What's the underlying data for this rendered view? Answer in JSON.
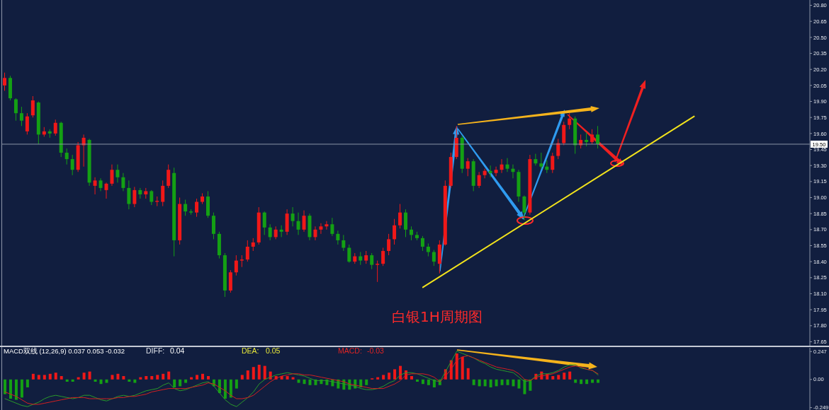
{
  "chart_data": [
    {
      "type": "candlestick",
      "title": "白银1H周期图",
      "categories": [
        null,
        null,
        null,
        null,
        null,
        null,
        null,
        null,
        null,
        null,
        null,
        null,
        null,
        null,
        null,
        null,
        null,
        null,
        null,
        null,
        null,
        null,
        null,
        null,
        null,
        null,
        null,
        null,
        null,
        null,
        null,
        null,
        null,
        null,
        null,
        null,
        null,
        null,
        null,
        null,
        null,
        null,
        null,
        null,
        null,
        null,
        null,
        null,
        null,
        null,
        null,
        null,
        null,
        null,
        null,
        null,
        null,
        null,
        null,
        null,
        null,
        null,
        null,
        null,
        null,
        null,
        null,
        null,
        null,
        null,
        null,
        null,
        null,
        null,
        null,
        null,
        null,
        null,
        null,
        null,
        null,
        null,
        null,
        null,
        null,
        null,
        null,
        null,
        null,
        null,
        null,
        null,
        null,
        null,
        null,
        null,
        null,
        null,
        null,
        null,
        null,
        null,
        null,
        null,
        null,
        null,
        null,
        null,
        null,
        null,
        null,
        null,
        null,
        null,
        null,
        null,
        null,
        null,
        null,
        null,
        null,
        null,
        null,
        null,
        null,
        null,
        null,
        null,
        null,
        null,
        null,
        null,
        null,
        null,
        null,
        null,
        null,
        null,
        null,
        null,
        null,
        null,
        null
      ],
      "ohlc": [
        [
          20.05,
          20.17,
          20.0,
          20.12
        ],
        [
          20.12,
          20.14,
          19.91,
          19.93
        ],
        [
          19.92,
          19.93,
          19.72,
          19.79
        ],
        [
          19.79,
          19.85,
          19.67,
          19.72
        ],
        [
          19.62,
          19.79,
          19.59,
          19.76
        ],
        [
          19.77,
          19.95,
          19.75,
          19.91
        ],
        [
          19.89,
          19.9,
          19.5,
          19.59
        ],
        [
          19.59,
          19.66,
          19.57,
          19.62
        ],
        [
          19.62,
          19.64,
          19.56,
          19.6
        ],
        [
          19.6,
          19.73,
          19.58,
          19.7
        ],
        [
          19.7,
          19.71,
          19.38,
          19.42
        ],
        [
          19.42,
          19.46,
          19.31,
          19.36
        ],
        [
          19.36,
          19.4,
          19.21,
          19.26
        ],
        [
          19.26,
          19.52,
          19.24,
          19.49
        ],
        [
          19.49,
          19.59,
          19.29,
          19.56
        ],
        [
          19.54,
          19.55,
          19.11,
          19.14
        ],
        [
          19.11,
          19.19,
          19.03,
          19.16
        ],
        [
          19.16,
          19.18,
          19.06,
          19.09
        ],
        [
          19.07,
          19.14,
          18.99,
          19.13
        ],
        [
          19.13,
          19.31,
          19.11,
          19.26
        ],
        [
          19.26,
          19.31,
          19.14,
          19.19
        ],
        [
          19.19,
          19.23,
          19.06,
          19.09
        ],
        [
          19.09,
          19.16,
          18.89,
          18.94
        ],
        [
          18.94,
          19.1,
          18.91,
          19.07
        ],
        [
          19.07,
          19.09,
          18.99,
          19.03
        ],
        [
          19.03,
          19.09,
          18.99,
          19.06
        ],
        [
          19.06,
          19.07,
          18.93,
          18.96
        ],
        [
          18.96,
          19.01,
          18.92,
          18.97
        ],
        [
          18.96,
          19.16,
          18.92,
          19.11
        ],
        [
          19.11,
          19.31,
          19.09,
          19.26
        ],
        [
          19.23,
          19.28,
          18.45,
          18.6
        ],
        [
          18.6,
          19.0,
          18.56,
          18.94
        ],
        [
          18.94,
          18.98,
          18.83,
          18.87
        ],
        [
          18.87,
          18.89,
          18.84,
          18.86
        ],
        [
          18.86,
          18.99,
          18.82,
          18.96
        ],
        [
          18.96,
          19.04,
          18.94,
          19.01
        ],
        [
          19.01,
          19.06,
          18.81,
          18.83
        ],
        [
          18.83,
          18.86,
          18.61,
          18.66
        ],
        [
          18.66,
          18.68,
          18.43,
          18.46
        ],
        [
          18.46,
          18.48,
          18.07,
          18.13
        ],
        [
          18.13,
          18.32,
          18.11,
          18.3
        ],
        [
          18.3,
          18.46,
          18.27,
          18.41
        ],
        [
          18.41,
          18.46,
          18.35,
          18.42
        ],
        [
          18.42,
          18.6,
          18.4,
          18.54
        ],
        [
          18.54,
          18.62,
          18.5,
          18.58
        ],
        [
          18.58,
          18.91,
          18.56,
          18.86
        ],
        [
          18.86,
          18.87,
          18.65,
          18.72
        ],
        [
          18.72,
          18.75,
          18.6,
          18.63
        ],
        [
          18.63,
          18.73,
          18.61,
          18.7
        ],
        [
          18.7,
          18.74,
          18.63,
          18.68
        ],
        [
          18.68,
          18.89,
          18.65,
          18.85
        ],
        [
          18.85,
          18.91,
          18.73,
          18.78
        ],
        [
          18.78,
          18.86,
          18.65,
          18.7
        ],
        [
          18.7,
          18.88,
          18.68,
          18.83
        ],
        [
          18.83,
          18.85,
          18.6,
          18.63
        ],
        [
          18.63,
          18.73,
          18.6,
          18.7
        ],
        [
          18.7,
          18.76,
          18.66,
          18.73
        ],
        [
          18.73,
          18.78,
          18.7,
          18.75
        ],
        [
          18.75,
          18.81,
          18.64,
          18.66
        ],
        [
          18.66,
          18.69,
          18.56,
          18.6
        ],
        [
          18.6,
          18.65,
          18.5,
          18.53
        ],
        [
          18.53,
          18.56,
          18.39,
          18.4
        ],
        [
          18.4,
          18.48,
          18.38,
          18.45
        ],
        [
          18.45,
          18.49,
          18.37,
          18.41
        ],
        [
          18.41,
          18.5,
          18.38,
          18.46
        ],
        [
          18.46,
          18.48,
          18.33,
          18.37
        ],
        [
          18.37,
          18.41,
          18.21,
          18.38
        ],
        [
          18.38,
          18.53,
          18.36,
          18.5
        ],
        [
          18.5,
          18.66,
          18.46,
          18.61
        ],
        [
          18.61,
          18.8,
          18.56,
          18.74
        ],
        [
          18.74,
          18.94,
          18.71,
          18.86
        ],
        [
          18.86,
          18.89,
          18.63,
          18.7
        ],
        [
          18.7,
          18.73,
          18.6,
          18.65
        ],
        [
          18.65,
          18.68,
          18.6,
          18.62
        ],
        [
          18.62,
          18.64,
          18.5,
          18.54
        ],
        [
          18.54,
          18.57,
          18.45,
          18.49
        ],
        [
          18.49,
          18.51,
          18.36,
          18.4
        ],
        [
          18.38,
          18.6,
          18.29,
          18.56
        ],
        [
          18.56,
          19.16,
          18.55,
          19.11
        ],
        [
          19.11,
          19.42,
          19.09,
          19.38
        ],
        [
          19.38,
          19.67,
          19.36,
          19.56
        ],
        [
          19.56,
          19.58,
          19.23,
          19.27
        ],
        [
          19.27,
          19.37,
          19.2,
          19.34
        ],
        [
          19.34,
          19.36,
          19.06,
          19.11
        ],
        [
          19.11,
          19.24,
          19.09,
          19.21
        ],
        [
          19.21,
          19.27,
          19.18,
          19.25
        ],
        [
          19.25,
          19.3,
          19.19,
          19.23
        ],
        [
          19.23,
          19.29,
          19.2,
          19.26
        ],
        [
          19.26,
          19.36,
          19.23,
          19.31
        ],
        [
          19.31,
          19.37,
          19.24,
          19.27
        ],
        [
          19.27,
          19.31,
          19.18,
          19.24
        ],
        [
          19.24,
          19.26,
          18.96,
          19.01
        ],
        [
          19.01,
          19.02,
          18.79,
          18.86
        ],
        [
          18.86,
          19.4,
          18.84,
          19.36
        ],
        [
          19.36,
          19.41,
          19.3,
          19.32
        ],
        [
          19.32,
          19.42,
          19.27,
          19.29
        ],
        [
          19.29,
          19.35,
          19.23,
          19.26
        ],
        [
          19.26,
          19.42,
          19.23,
          19.39
        ],
        [
          19.39,
          19.55,
          19.36,
          19.51
        ],
        [
          19.51,
          19.71,
          19.49,
          19.68
        ],
        [
          19.68,
          19.79,
          19.64,
          19.74
        ],
        [
          19.74,
          19.76,
          19.41,
          19.49
        ],
        [
          19.49,
          19.59,
          19.46,
          19.54
        ],
        [
          19.54,
          19.61,
          19.48,
          19.52
        ],
        [
          19.52,
          19.64,
          19.5,
          19.59
        ],
        [
          19.59,
          19.67,
          19.46,
          19.5
        ],
        null,
        null,
        null,
        null,
        null,
        null,
        null,
        null,
        null,
        null,
        null,
        null,
        null,
        null,
        null,
        null,
        null,
        null,
        null,
        null,
        null,
        null,
        null,
        null,
        null,
        null,
        null,
        null,
        null,
        null,
        null,
        null,
        null,
        null,
        null,
        null,
        null
      ],
      "colors": [
        "#f01818",
        "#14a014",
        "#14a014",
        "#14a014",
        "#f01818",
        "#f01818",
        "#14a014",
        "#f01818",
        "#14a014",
        "#f01818",
        "#14a014",
        "#14a014",
        "#14a014",
        "#f01818",
        "#f01818",
        "#14a014",
        "#f01818",
        "#14a014",
        "#f01818",
        "#f01818",
        "#14a014",
        "#14a014",
        "#14a014",
        "#f01818",
        "#14a014",
        "#f01818",
        "#14a014",
        "#f01818",
        "#f01818",
        "#f01818",
        "#14a014",
        "#f01818",
        "#14a014",
        "#14a014",
        "#f01818",
        "#f01818",
        "#14a014",
        "#14a014",
        "#14a014",
        "#14a014",
        "#f01818",
        "#f01818",
        "#f01818",
        "#f01818",
        "#f01818",
        "#f01818",
        "#14a014",
        "#14a014",
        "#f01818",
        "#14a014",
        "#f01818",
        "#14a014",
        "#14a014",
        "#f01818",
        "#14a014",
        "#f01818",
        "#f01818",
        "#f01818",
        "#14a014",
        "#14a014",
        "#14a014",
        "#14a014",
        "#f01818",
        "#14a014",
        "#f01818",
        "#14a014",
        "#f01818",
        "#f01818",
        "#f01818",
        "#f01818",
        "#f01818",
        "#14a014",
        "#14a014",
        "#14a014",
        "#14a014",
        "#14a014",
        "#14a014",
        "#f01818",
        "#f01818",
        "#f01818",
        "#f01818",
        "#14a014",
        "#f01818",
        "#14a014",
        "#f01818",
        "#f01818",
        "#14a014",
        "#f01818",
        "#f01818",
        "#14a014",
        "#14a014",
        "#14a014",
        "#14a014",
        "#f01818",
        "#14a014",
        "#14a014",
        "#14a014",
        "#f01818",
        "#f01818",
        "#f01818",
        "#f01818",
        "#14a014",
        "#f01818",
        "#14a014",
        "#f01818",
        "#14a014",
        null,
        null,
        null,
        null,
        null,
        null,
        null,
        null,
        null,
        null,
        null,
        null,
        null,
        null,
        null,
        null,
        null,
        null,
        null,
        null,
        null,
        null,
        null,
        null,
        null,
        null,
        null,
        null,
        null,
        null,
        null,
        null,
        null,
        null,
        null,
        null,
        null
      ],
      "series": [
        {
          "type": "line",
          "color": "#f2e31c",
          "values": [
            null,
            null,
            null,
            null,
            null,
            null,
            null,
            null,
            null,
            null,
            null,
            null,
            null,
            null,
            null,
            null,
            null,
            null,
            null,
            null,
            null,
            null,
            null,
            null,
            null,
            null,
            null,
            null,
            null,
            null,
            null,
            null,
            null,
            null,
            null,
            null,
            null,
            null,
            null,
            null,
            null,
            null,
            null,
            null,
            null,
            null,
            null,
            null,
            null,
            null,
            null,
            null,
            null,
            null,
            null,
            null,
            null,
            null,
            null,
            null,
            null,
            null,
            null,
            null,
            null,
            null,
            null,
            null,
            null,
            null,
            null,
            null,
            null,
            null,
            18.16,
            null,
            null,
            null,
            null,
            null,
            null,
            null,
            null,
            null,
            null,
            null,
            null,
            null,
            null,
            null,
            null,
            null,
            null,
            null,
            null,
            null,
            null,
            null,
            null,
            null,
            null,
            null,
            null,
            null,
            null,
            null,
            null,
            null,
            null,
            null,
            null,
            null,
            null,
            null,
            null,
            null,
            null,
            null,
            null,
            null,
            null,
            null,
            19.76,
            null,
            null,
            null,
            null,
            null,
            null,
            null,
            null,
            null,
            null,
            null,
            null,
            null,
            null,
            null,
            null,
            null,
            null,
            null,
            null
          ]
        }
      ],
      "ylim": [
        17.6,
        20.85
      ],
      "yticks": [
        17.65,
        {
          "value": 17.8,
          "label": "17.80"
        },
        17.95,
        {
          "value": 18.1,
          "label": "18.10"
        },
        18.25,
        {
          "value": 18.4,
          "label": "18.40"
        },
        18.55,
        {
          "value": 18.7,
          "label": "18.70"
        },
        18.85,
        {
          "value": 19,
          "label": "19.00"
        },
        19.15,
        {
          "value": 19.3,
          "label": "19.30"
        },
        19.45,
        {
          "value": 19.6,
          "label": "19.60"
        },
        19.75,
        {
          "value": 19.9,
          "label": "19.90"
        },
        20.05,
        {
          "value": 20.2,
          "label": "20.20"
        },
        20.35,
        {
          "value": 20.5,
          "label": "20.50"
        },
        20.65,
        {
          "value": 20.8,
          "label": "20.80"
        }
      ],
      "ref_lines": [
        {
          "axis": "y",
          "value": 19.5,
          "label": "19.50",
          "color": "#8c95a8"
        }
      ],
      "tick_labels": "y"
    },
    {
      "type": "bar",
      "categories": [
        null,
        null,
        null,
        null,
        null,
        null,
        null,
        null,
        null,
        null,
        null,
        null,
        null,
        null,
        null,
        null,
        null,
        null,
        null,
        null,
        null,
        null,
        null,
        null,
        null,
        null,
        null,
        null,
        null,
        null,
        null,
        null,
        null,
        null,
        null,
        null,
        null,
        null,
        null,
        null,
        null,
        null,
        null,
        null,
        null,
        null,
        null,
        null,
        null,
        null,
        null,
        null,
        null,
        null,
        null,
        null,
        null,
        null,
        null,
        null,
        null,
        null,
        null,
        null,
        null,
        null,
        null,
        null,
        null,
        null,
        null,
        null,
        null,
        null,
        null,
        null,
        null,
        null,
        null,
        null,
        null,
        null,
        null,
        null,
        null,
        null,
        null,
        null,
        null,
        null,
        null,
        null,
        null,
        null,
        null,
        null,
        null,
        null,
        null,
        null,
        null,
        null,
        null,
        null,
        null,
        null,
        null,
        null,
        null,
        null,
        null,
        null,
        null,
        null,
        null,
        null,
        null,
        null,
        null,
        null,
        null,
        null,
        null,
        null,
        null,
        null,
        null,
        null,
        null,
        null,
        null,
        null,
        null,
        null,
        null,
        null,
        null,
        null,
        null,
        null,
        null,
        null,
        null
      ],
      "series": [
        {
          "type": "bar",
          "values": [
            -0.13,
            -0.17,
            -0.18,
            -0.16,
            -0.07,
            0.05,
            0.04,
            0.04,
            0.05,
            0.06,
            0.03,
            -0.02,
            -0.02,
            0.02,
            0.06,
            0.07,
            -0.02,
            -0.04,
            -0.03,
            0.04,
            0.05,
            0.03,
            -0.02,
            -0.03,
            0.02,
            0.03,
            0.03,
            0.04,
            0.05,
            0.07,
            -0.07,
            -0.06,
            -0.03,
            0.02,
            0.04,
            0.05,
            0.03,
            -0.06,
            -0.12,
            -0.17,
            -0.16,
            -0.08,
            0.04,
            0.08,
            0.11,
            0.13,
            0.12,
            0.07,
            0.03,
            0.03,
            0.03,
            0.02,
            -0.03,
            -0.04,
            -0.05,
            -0.05,
            -0.04,
            -0.05,
            -0.06,
            -0.08,
            -0.09,
            -0.09,
            -0.08,
            -0.07,
            -0.05,
            0.01,
            0.02,
            0.04,
            0.06,
            0.09,
            0.12,
            0.08,
            0.03,
            -0.02,
            -0.04,
            -0.05,
            -0.07,
            -0.05,
            0.09,
            0.17,
            0.23,
            0.2,
            0.1,
            -0.05,
            -0.06,
            -0.06,
            -0.07,
            -0.06,
            -0.05,
            -0.05,
            -0.06,
            -0.08,
            -0.13,
            -0.1,
            0.05,
            0.07,
            0.05,
            0.03,
            0.04,
            0.06,
            0.07,
            -0.03,
            -0.04,
            -0.04,
            -0.03,
            -0.03,
            null,
            null,
            null,
            null,
            null,
            null,
            null,
            null,
            null,
            null,
            null,
            null,
            null,
            null,
            null,
            null,
            null,
            null,
            null,
            null,
            null,
            null,
            null,
            null,
            null,
            null,
            null,
            null,
            null,
            null,
            null,
            null,
            null,
            null,
            null,
            null,
            null
          ],
          "colors": [
            "#14a014",
            "#14a014",
            "#14a014",
            "#14a014",
            "#14a014",
            "#f01818",
            "#f01818",
            "#f01818",
            "#f01818",
            "#f01818",
            "#f01818",
            "#14a014",
            "#14a014",
            "#f01818",
            "#f01818",
            "#f01818",
            "#14a014",
            "#14a014",
            "#14a014",
            "#f01818",
            "#f01818",
            "#f01818",
            "#14a014",
            "#14a014",
            "#f01818",
            "#f01818",
            "#f01818",
            "#f01818",
            "#f01818",
            "#f01818",
            "#14a014",
            "#14a014",
            "#14a014",
            "#f01818",
            "#f01818",
            "#f01818",
            "#f01818",
            "#14a014",
            "#14a014",
            "#14a014",
            "#14a014",
            "#14a014",
            "#f01818",
            "#f01818",
            "#f01818",
            "#f01818",
            "#f01818",
            "#f01818",
            "#f01818",
            "#f01818",
            "#f01818",
            "#f01818",
            "#14a014",
            "#14a014",
            "#14a014",
            "#14a014",
            "#14a014",
            "#14a014",
            "#14a014",
            "#14a014",
            "#14a014",
            "#14a014",
            "#14a014",
            "#14a014",
            "#14a014",
            "#f01818",
            "#f01818",
            "#f01818",
            "#f01818",
            "#f01818",
            "#f01818",
            "#f01818",
            "#f01818",
            "#14a014",
            "#14a014",
            "#14a014",
            "#14a014",
            "#14a014",
            "#f01818",
            "#f01818",
            "#f01818",
            "#f01818",
            "#f01818",
            "#14a014",
            "#14a014",
            "#14a014",
            "#14a014",
            "#14a014",
            "#14a014",
            "#14a014",
            "#14a014",
            "#14a014",
            "#14a014",
            "#14a014",
            "#f01818",
            "#f01818",
            "#f01818",
            "#f01818",
            "#f01818",
            "#f01818",
            "#f01818",
            "#14a014",
            "#14a014",
            "#14a014",
            "#14a014",
            "#14a014",
            null,
            null,
            null,
            null,
            null,
            null,
            null,
            null,
            null,
            null,
            null,
            null,
            null,
            null,
            null,
            null,
            null,
            null,
            null,
            null,
            null,
            null,
            null,
            null,
            null,
            null,
            null,
            null,
            null,
            null,
            null,
            null,
            null,
            null,
            null,
            null,
            null
          ]
        },
        {
          "type": "line",
          "color": "#2a9a2a",
          "values": [
            -0.17,
            -0.19,
            -0.21,
            -0.23,
            -0.24,
            -0.22,
            -0.2,
            -0.17,
            -0.15,
            -0.14,
            -0.15,
            -0.16,
            -0.17,
            -0.16,
            -0.14,
            -0.14,
            -0.16,
            -0.18,
            -0.19,
            -0.17,
            -0.15,
            -0.14,
            -0.15,
            -0.14,
            -0.12,
            -0.1,
            -0.09,
            -0.08,
            -0.05,
            -0.03,
            -0.08,
            -0.1,
            -0.09,
            -0.07,
            -0.05,
            -0.03,
            -0.02,
            -0.06,
            -0.12,
            -0.18,
            -0.22,
            -0.24,
            -0.2,
            -0.16,
            -0.11,
            -0.04,
            0.0,
            0.02,
            0.04,
            0.05,
            0.06,
            0.05,
            0.04,
            0.03,
            0.01,
            -0.01,
            -0.01,
            -0.01,
            -0.02,
            -0.03,
            -0.04,
            -0.05,
            -0.06,
            -0.08,
            -0.09,
            -0.09,
            -0.08,
            -0.06,
            -0.03,
            -0.01,
            0.04,
            0.06,
            0.06,
            0.05,
            0.03,
            0.01,
            -0.01,
            -0.02,
            0.07,
            0.16,
            0.25,
            0.23,
            0.21,
            0.19,
            0.16,
            0.14,
            0.11,
            0.09,
            0.08,
            0.07,
            0.06,
            0.02,
            -0.02,
            -0.01,
            0.03,
            0.05,
            0.05,
            0.06,
            0.08,
            0.11,
            0.13,
            0.13,
            0.1,
            0.09,
            0.08,
            0.04,
            null,
            null,
            null,
            null,
            null,
            null,
            null,
            null,
            null,
            null,
            null,
            null,
            null,
            null,
            null,
            null,
            null,
            null,
            null,
            null,
            null,
            null,
            null,
            null,
            null,
            null,
            null,
            null,
            null,
            null,
            null,
            null,
            null,
            null,
            null,
            null,
            null
          ]
        },
        {
          "type": "line",
          "color": "#d42020",
          "values": [
            -0.11,
            -0.13,
            -0.15,
            -0.18,
            -0.21,
            -0.22,
            -0.22,
            -0.21,
            -0.2,
            -0.19,
            -0.18,
            -0.17,
            -0.16,
            -0.16,
            -0.16,
            -0.17,
            -0.17,
            -0.17,
            -0.17,
            -0.17,
            -0.16,
            -0.16,
            -0.15,
            -0.15,
            -0.14,
            -0.13,
            -0.11,
            -0.1,
            -0.09,
            -0.08,
            -0.08,
            -0.08,
            -0.08,
            -0.07,
            -0.06,
            -0.05,
            -0.03,
            -0.04,
            -0.07,
            -0.1,
            -0.14,
            -0.17,
            -0.17,
            -0.16,
            -0.14,
            -0.1,
            -0.06,
            -0.02,
            0.01,
            0.03,
            0.04,
            0.05,
            0.05,
            0.04,
            0.04,
            0.03,
            0.02,
            0.01,
            0.0,
            -0.01,
            -0.02,
            -0.04,
            -0.05,
            -0.06,
            -0.07,
            -0.08,
            -0.08,
            -0.08,
            -0.06,
            -0.04,
            -0.01,
            0.04,
            0.05,
            0.05,
            0.05,
            0.04,
            0.02,
            -0.02,
            0.03,
            0.09,
            0.17,
            0.2,
            0.21,
            0.19,
            0.17,
            0.15,
            0.13,
            0.11,
            0.1,
            0.09,
            0.08,
            0.05,
            0.0,
            -0.01,
            0.02,
            0.03,
            0.04,
            0.05,
            0.07,
            0.09,
            0.11,
            0.12,
            0.11,
            0.09,
            0.08,
            0.05,
            null,
            null,
            null,
            null,
            null,
            null,
            null,
            null,
            null,
            null,
            null,
            null,
            null,
            null,
            null,
            null,
            null,
            null,
            null,
            null,
            null,
            null,
            null,
            null,
            null,
            null,
            null,
            null,
            null,
            null,
            null,
            null,
            null,
            null,
            null,
            null,
            null
          ]
        }
      ],
      "ylim": [
        -0.27,
        0.28
      ],
      "yticks": [
        0.247,
        {
          "value": 0,
          "label": "0.00"
        },
        -0.249
      ],
      "tick_labels": "y",
      "annotations": [
        "MACD双线 (12,26,9) 0.037 0.053 -0.032",
        "DIFF:",
        "0.04",
        "DEA:",
        "0.05",
        "MACD:",
        "-0.03"
      ]
    }
  ]
}
